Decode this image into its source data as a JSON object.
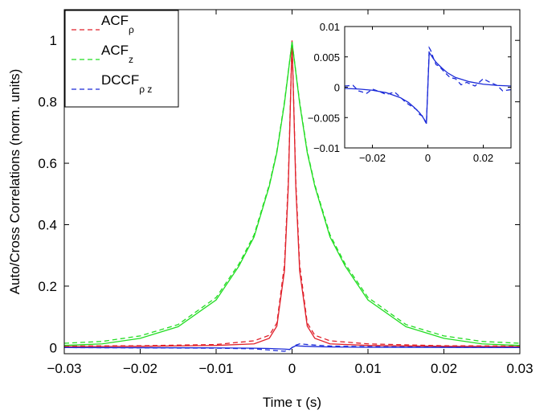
{
  "chart_data": {
    "type": "line",
    "xlabel": "Time τ (s)",
    "ylabel": "Auto/Cross Correlations (norm. units)",
    "xlim": [
      -0.03,
      0.03
    ],
    "ylim": [
      -0.02,
      1.1
    ],
    "xticks": [
      -0.03,
      -0.02,
      -0.01,
      0,
      0.01,
      0.02,
      0.03
    ],
    "xtick_labels": [
      "−0.03",
      "−0.02",
      "−0.01",
      "0",
      "0.01",
      "0.02",
      "0.03"
    ],
    "yticks": [
      0,
      0.2,
      0.4,
      0.6,
      0.8,
      1
    ],
    "ytick_labels": [
      "0",
      "0.2",
      "0.4",
      "0.6",
      "0.8",
      "1"
    ],
    "grid": false,
    "legend_position": "top-left",
    "legend": [
      {
        "base": "ACF",
        "sub": "ρ",
        "color": "#e0202a",
        "style": "dashed"
      },
      {
        "base": "ACF",
        "sub": "z",
        "color": "#22dd22",
        "style": "dashed"
      },
      {
        "base": "DCCF",
        "sub": "ρ z",
        "color": "#1c2bd8",
        "style": "dashed"
      }
    ],
    "series": [
      {
        "color": "#e0202a",
        "style": "solid",
        "x": [
          -0.03,
          -0.02,
          -0.01,
          -0.005,
          -0.003,
          -0.002,
          -0.001,
          -0.0005,
          0,
          0.0005,
          0.001,
          0.002,
          0.003,
          0.005,
          0.01,
          0.02,
          0.03
        ],
        "y": [
          0.003,
          0.004,
          0.007,
          0.012,
          0.03,
          0.07,
          0.25,
          0.52,
          1.0,
          0.52,
          0.25,
          0.07,
          0.03,
          0.012,
          0.007,
          0.004,
          0.003
        ]
      },
      {
        "color": "#e0202a",
        "style": "dashed",
        "x": [
          -0.03,
          -0.02,
          -0.01,
          -0.005,
          -0.003,
          -0.002,
          -0.001,
          -0.0005,
          0,
          0.0005,
          0.001,
          0.002,
          0.003,
          0.005,
          0.01,
          0.02,
          0.03
        ],
        "y": [
          0.005,
          0.006,
          0.01,
          0.022,
          0.04,
          0.08,
          0.27,
          0.54,
          1.0,
          0.54,
          0.27,
          0.08,
          0.04,
          0.022,
          0.012,
          0.006,
          0.005
        ]
      },
      {
        "color": "#22dd22",
        "style": "solid",
        "x": [
          -0.03,
          -0.025,
          -0.02,
          -0.015,
          -0.01,
          -0.007,
          -0.005,
          -0.003,
          -0.002,
          -0.001,
          0,
          0.001,
          0.002,
          0.003,
          0.005,
          0.007,
          0.01,
          0.015,
          0.02,
          0.025,
          0.03
        ],
        "y": [
          0.007,
          0.012,
          0.03,
          0.068,
          0.155,
          0.265,
          0.36,
          0.525,
          0.635,
          0.795,
          0.995,
          0.795,
          0.635,
          0.525,
          0.36,
          0.265,
          0.155,
          0.068,
          0.03,
          0.012,
          0.007
        ]
      },
      {
        "color": "#22dd22",
        "style": "dashed",
        "x": [
          -0.03,
          -0.025,
          -0.02,
          -0.015,
          -0.01,
          -0.007,
          -0.005,
          -0.003,
          -0.002,
          -0.001,
          0,
          0.001,
          0.002,
          0.003,
          0.005,
          0.007,
          0.01,
          0.015,
          0.02,
          0.025,
          0.03
        ],
        "y": [
          0.014,
          0.02,
          0.038,
          0.075,
          0.163,
          0.272,
          0.367,
          0.53,
          0.64,
          0.8,
          0.995,
          0.8,
          0.64,
          0.53,
          0.367,
          0.272,
          0.163,
          0.075,
          0.038,
          0.02,
          0.014
        ]
      },
      {
        "color": "#1c2bd8",
        "style": "solid",
        "x": [
          -0.03,
          -0.01,
          -0.005,
          -0.003,
          -0.001,
          -0.0003,
          0,
          0.0005,
          0.001,
          0.002,
          0.003,
          0.005,
          0.01,
          0.03
        ],
        "y": [
          0.0,
          -0.001,
          -0.002,
          -0.003,
          -0.005,
          -0.006,
          0.0,
          0.006,
          0.005,
          0.004,
          0.003,
          0.002,
          0.001,
          0.0
        ]
      },
      {
        "color": "#1c2bd8",
        "style": "dashed",
        "x": [
          -0.03,
          -0.02,
          -0.01,
          -0.005,
          -0.003,
          -0.001,
          -0.0003,
          0,
          0.0005,
          0.001,
          0.002,
          0.003,
          0.005,
          0.01,
          0.02,
          0.03
        ],
        "y": [
          0.0,
          -0.001,
          -0.002,
          -0.004,
          -0.008,
          -0.012,
          -0.006,
          0.0,
          0.008,
          0.012,
          0.01,
          0.008,
          0.005,
          0.003,
          0.001,
          0.0
        ]
      }
    ],
    "inset": {
      "xlim": [
        -0.03,
        0.03
      ],
      "ylim": [
        -0.01,
        0.01
      ],
      "xticks": [
        -0.02,
        0,
        0.02
      ],
      "xtick_labels": [
        "−0.02",
        "0",
        "0.02"
      ],
      "yticks": [
        -0.01,
        -0.005,
        0,
        0.005,
        0.01
      ],
      "ytick_labels": [
        "−0.01",
        "−0.005",
        "0",
        "0.005",
        "0.01"
      ],
      "series": [
        {
          "color": "#1c2bd8",
          "style": "solid",
          "x": [
            -0.03,
            -0.025,
            -0.02,
            -0.015,
            -0.01,
            -0.007,
            -0.005,
            -0.003,
            -0.002,
            -0.001,
            -0.0005,
            0,
            0.0005,
            0.001,
            0.002,
            0.003,
            0.005,
            0.007,
            0.01,
            0.015,
            0.02,
            0.025,
            0.03
          ],
          "y": [
            -0.0002,
            -0.0003,
            -0.0005,
            -0.0009,
            -0.0017,
            -0.0025,
            -0.0033,
            -0.0042,
            -0.0048,
            -0.0055,
            -0.0058,
            0.0,
            0.0057,
            0.0054,
            0.0047,
            0.0041,
            0.0032,
            0.0024,
            0.0016,
            0.0009,
            0.0005,
            0.0003,
            0.0002
          ]
        },
        {
          "color": "#1c2bd8",
          "style": "dashed",
          "x": [
            -0.03,
            -0.027,
            -0.025,
            -0.022,
            -0.02,
            -0.017,
            -0.015,
            -0.012,
            -0.01,
            -0.008,
            -0.006,
            -0.004,
            -0.003,
            -0.002,
            -0.001,
            -0.0005,
            0,
            0.0005,
            0.001,
            0.002,
            0.003,
            0.004,
            0.006,
            0.008,
            0.01,
            0.012,
            0.014,
            0.017,
            0.02,
            0.022,
            0.025,
            0.027,
            0.03
          ],
          "y": [
            0.0002,
            0.0003,
            -0.0006,
            -0.001,
            -0.0003,
            -0.0008,
            -0.0012,
            -0.0008,
            -0.0016,
            -0.0025,
            -0.0031,
            -0.0037,
            -0.0045,
            -0.0047,
            -0.0056,
            -0.006,
            0.0002,
            0.0065,
            0.0061,
            0.0048,
            0.0037,
            0.0035,
            0.0025,
            0.0016,
            0.0014,
            0.0004,
            0.0008,
            0.0002,
            0.0014,
            0.0009,
            0.0003,
            -0.0006,
            -0.0004
          ]
        }
      ]
    }
  }
}
